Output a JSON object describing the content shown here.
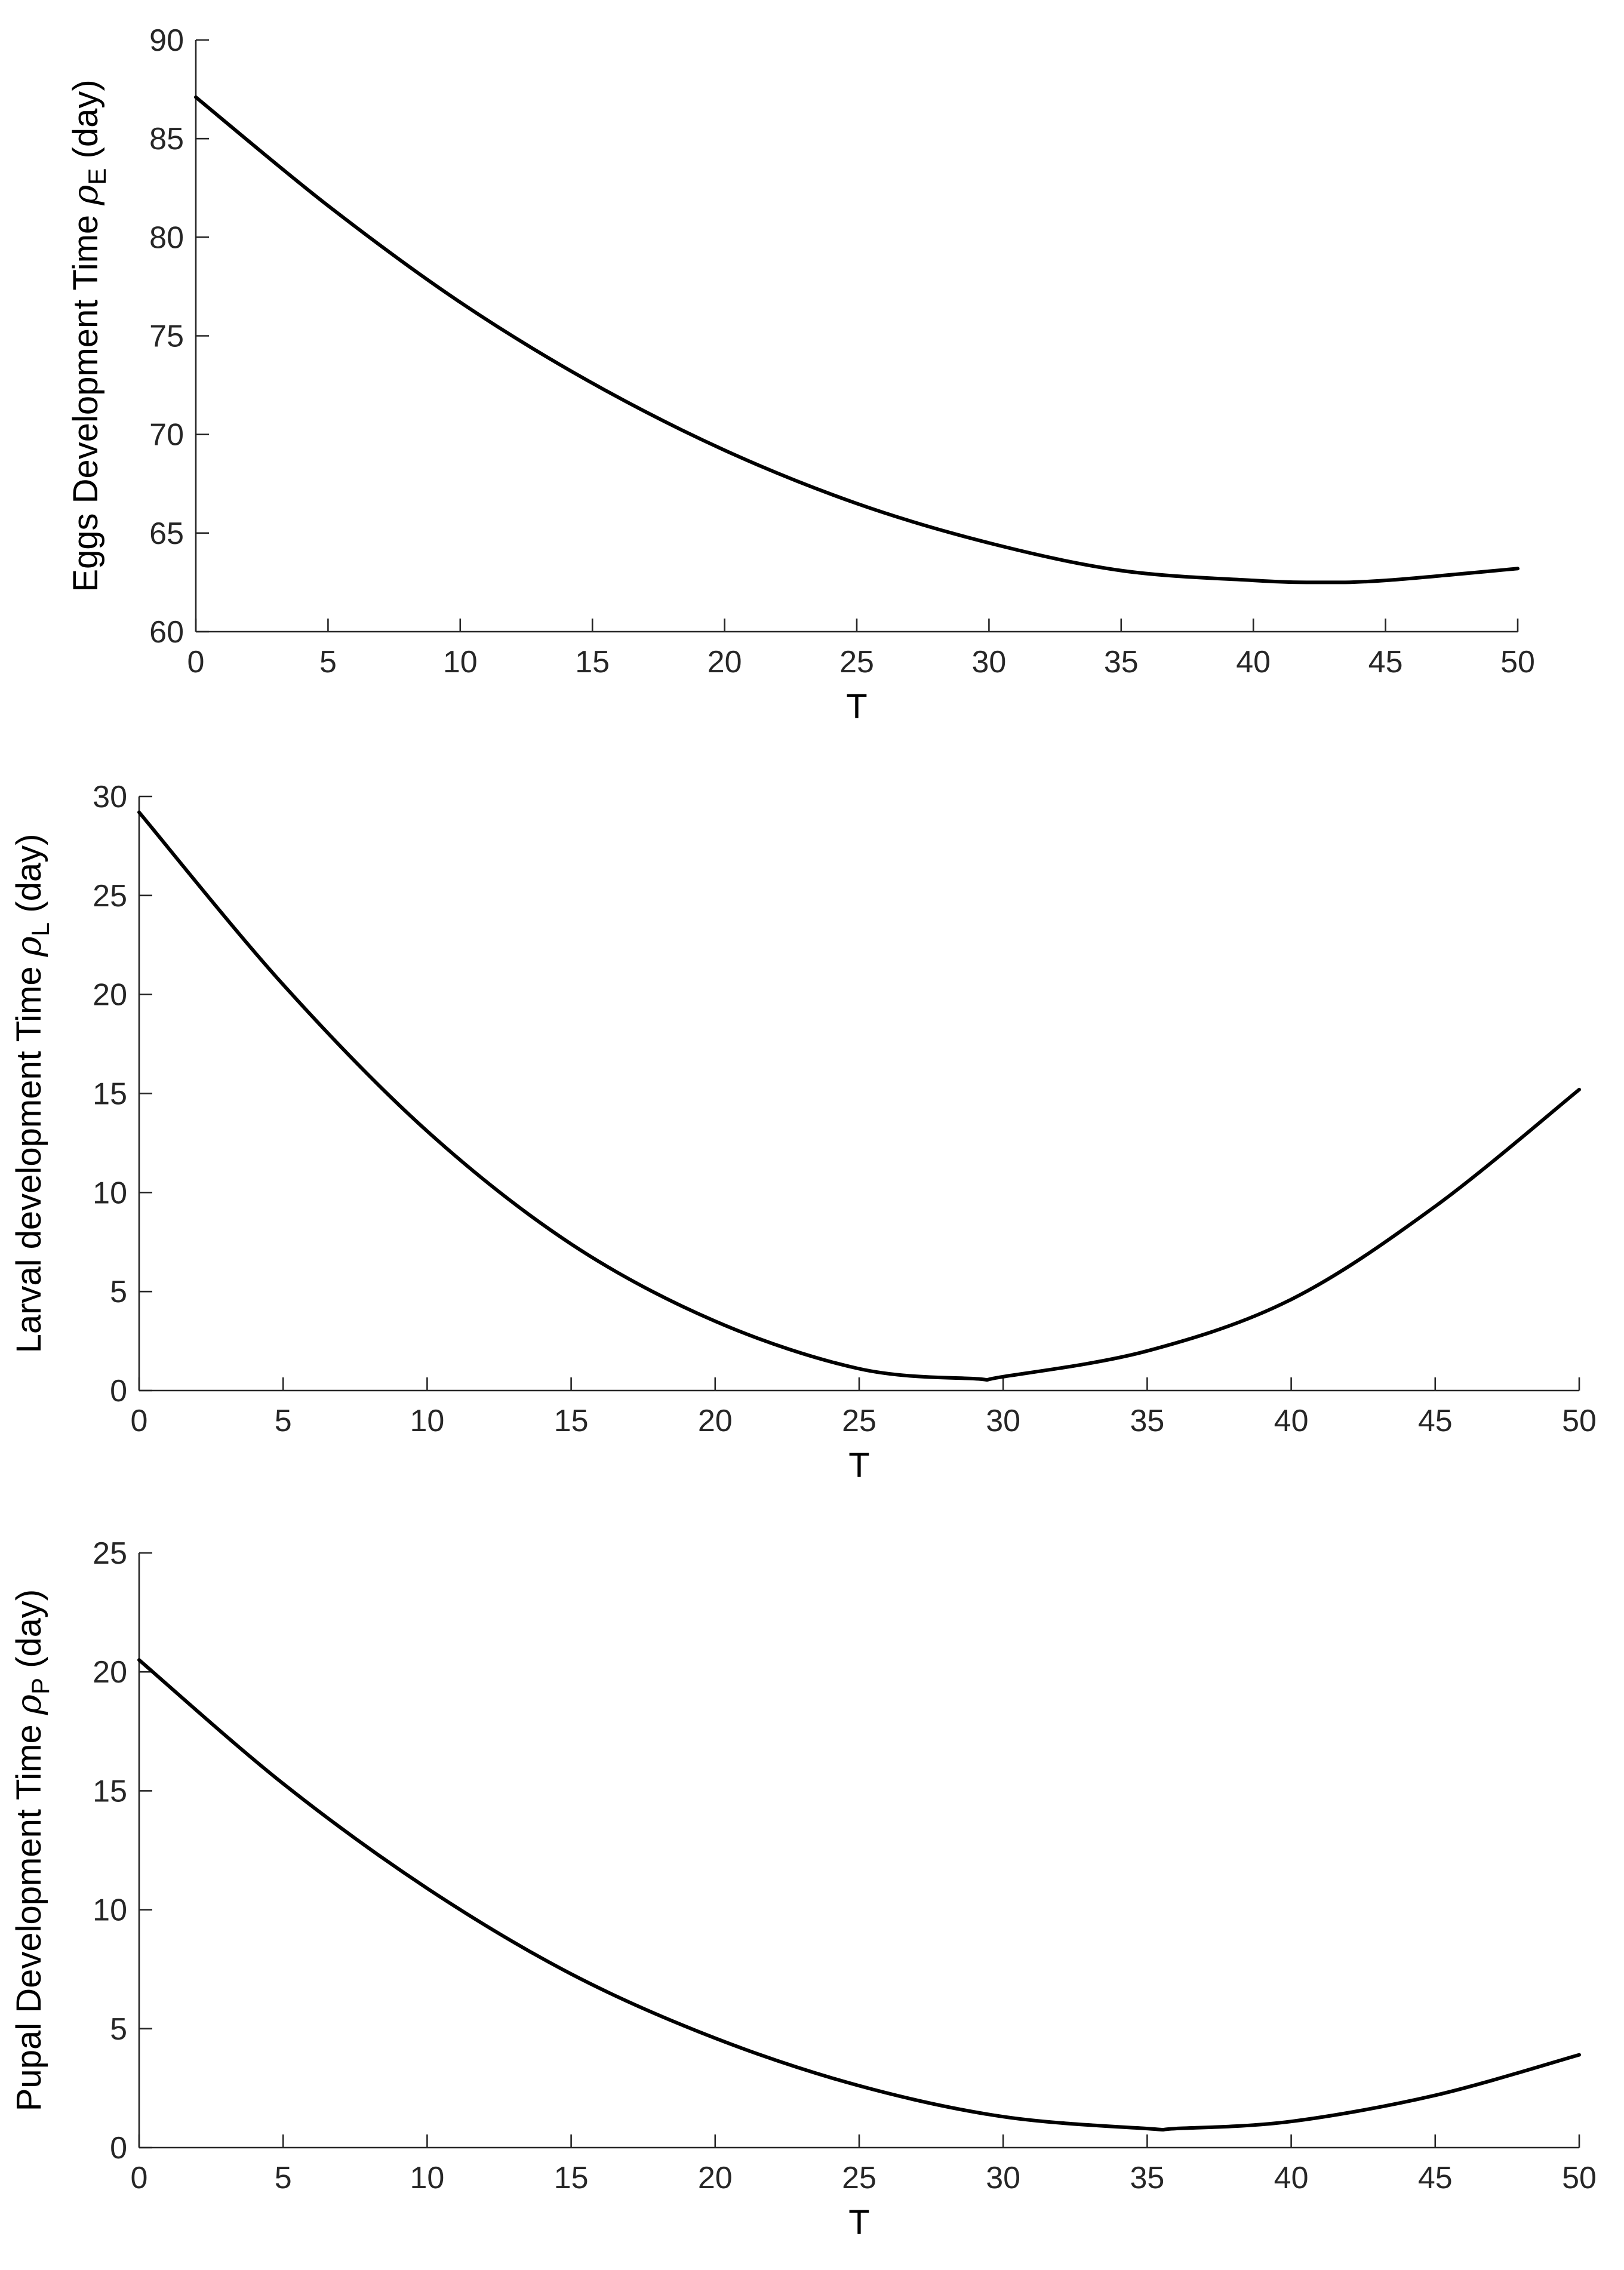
{
  "figure": {
    "background": "#ffffff",
    "axis_color": "#262626",
    "line_color": "#000000"
  },
  "chart_data": [
    {
      "type": "line",
      "xlabel": "T",
      "ylabel": {
        "prefix": "Eggs Development Time ",
        "symbol": "ρ",
        "subscript": "E",
        "suffix": " (day)"
      },
      "xlim": [
        0,
        50
      ],
      "ylim": [
        60,
        90
      ],
      "xticks": [
        0,
        5,
        10,
        15,
        20,
        25,
        30,
        35,
        40,
        45,
        50
      ],
      "yticks": [
        60,
        65,
        70,
        75,
        80,
        85,
        90
      ],
      "grid": false,
      "series": [
        {
          "color": "#000000",
          "x": [
            0,
            5,
            10,
            15,
            20,
            25,
            30,
            35,
            40,
            42.5,
            45,
            50
          ],
          "y": [
            87.1,
            81.6,
            76.7,
            72.6,
            69.2,
            66.5,
            64.5,
            63.1,
            62.6,
            62.5,
            62.6,
            63.2
          ]
        }
      ]
    },
    {
      "type": "line",
      "xlabel": "T",
      "ylabel": {
        "prefix": "Larval development Time ",
        "symbol": "ρ",
        "subscript": "L",
        "suffix": " (day)"
      },
      "xlim": [
        0,
        50
      ],
      "ylim": [
        0,
        30
      ],
      "xticks": [
        0,
        5,
        10,
        15,
        20,
        25,
        30,
        35,
        40,
        45,
        50
      ],
      "yticks": [
        0,
        5,
        10,
        15,
        20,
        25,
        30
      ],
      "grid": false,
      "series": [
        {
          "color": "#000000",
          "x": [
            0,
            5,
            10,
            15,
            20,
            25,
            29,
            30,
            35,
            40,
            45,
            50
          ],
          "y": [
            29.2,
            20.5,
            13.1,
            7.4,
            3.5,
            1.1,
            0.6,
            0.7,
            2.0,
            4.6,
            9.3,
            15.2
          ]
        }
      ]
    },
    {
      "type": "line",
      "xlabel": "T",
      "ylabel": {
        "prefix": "Pupal Development Time ",
        "symbol": "ρ",
        "subscript": "P",
        "suffix": " (day)"
      },
      "xlim": [
        0,
        50
      ],
      "ylim": [
        0,
        25
      ],
      "xticks": [
        0,
        5,
        10,
        15,
        20,
        25,
        30,
        35,
        40,
        45,
        50
      ],
      "yticks": [
        0,
        5,
        10,
        15,
        20,
        25
      ],
      "grid": false,
      "series": [
        {
          "color": "#000000",
          "x": [
            0,
            5,
            10,
            15,
            20,
            25,
            30,
            35,
            36,
            40,
            45,
            50
          ],
          "y": [
            20.5,
            15.3,
            10.9,
            7.3,
            4.6,
            2.6,
            1.3,
            0.8,
            0.8,
            1.1,
            2.2,
            3.9
          ]
        }
      ]
    }
  ]
}
